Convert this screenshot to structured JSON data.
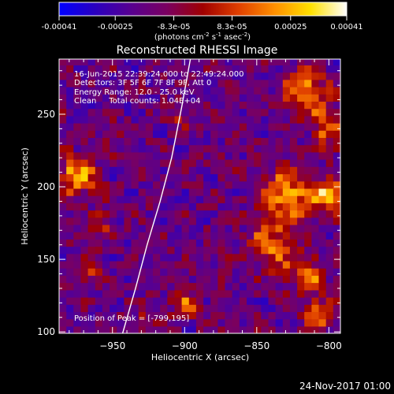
{
  "colors": {
    "background": "#000000",
    "text": "#ffffff",
    "limb_line": "#ffffff",
    "colormap": [
      "#0000ff",
      "#2a00c0",
      "#580090",
      "#7a0060",
      "#a00000",
      "#e04000",
      "#ff9000",
      "#ffe000",
      "#ffffff"
    ]
  },
  "colorbar": {
    "ticks": [
      {
        "value": -0.00041,
        "label": "-0.00041"
      },
      {
        "value": -0.00025,
        "label": "-0.00025"
      },
      {
        "value": -8.3e-05,
        "label": "-8.3e-05"
      },
      {
        "value": 8.3e-05,
        "label": "8.3e-05"
      },
      {
        "value": 0.00025,
        "label": "0.00025"
      },
      {
        "value": 0.00041,
        "label": "0.00041"
      }
    ],
    "range": [
      -0.00041,
      0.00041
    ],
    "unit_label": "(photons cm",
    "unit_sup1": "-2",
    "unit_mid": " s",
    "unit_sup2": "-1",
    "unit_end": " asec",
    "unit_sup3": "-2",
    "unit_close": ")"
  },
  "chart_data": {
    "type": "heatmap",
    "title": "Reconstructed RHESSI Image",
    "xlabel": "Heliocentric X (arcsec)",
    "ylabel": "Heliocentric Y (arcsec)",
    "xlim": [
      -987,
      -792
    ],
    "ylim": [
      99,
      288
    ],
    "x_ticks": [
      -950,
      -900,
      -850,
      -800
    ],
    "y_ticks": [
      100,
      150,
      200,
      250
    ],
    "grid": false,
    "annotations": [
      "16-Jun-2015 22:39:24.000 to 22:49:24.000",
      "Detectors: 3F 5F 6F 7F 8F 9F, Att 0",
      "Energy Range: 12.0 - 25.0 keV",
      "Clean     Total counts: 1.04E+04"
    ],
    "peak_label": "Position of Peak = [-799,195]",
    "peak_position": [
      -799,
      195
    ],
    "limb_curve": {
      "x": [
        -943,
        -934,
        -926,
        -917,
        -909,
        -902,
        -896
      ],
      "y": [
        99,
        130,
        160,
        190,
        220,
        255,
        288
      ]
    },
    "hotspots": [
      {
        "x": -975,
        "y": 208,
        "amp": 0.00036,
        "sigma": 9
      },
      {
        "x": -968,
        "y": 145,
        "amp": 0.00018,
        "sigma": 7
      },
      {
        "x": -958,
        "y": 176,
        "amp": 0.00016,
        "sigma": 6
      },
      {
        "x": -815,
        "y": 265,
        "amp": 0.00033,
        "sigma": 11
      },
      {
        "x": -797,
        "y": 240,
        "amp": 0.00032,
        "sigma": 9
      },
      {
        "x": -828,
        "y": 195,
        "amp": 0.00041,
        "sigma": 12
      },
      {
        "x": -799,
        "y": 195,
        "amp": 0.00041,
        "sigma": 8
      },
      {
        "x": -838,
        "y": 160,
        "amp": 0.0003,
        "sigma": 11
      },
      {
        "x": -815,
        "y": 140,
        "amp": 0.00029,
        "sigma": 9
      },
      {
        "x": -808,
        "y": 112,
        "amp": 0.00024,
        "sigma": 8
      },
      {
        "x": -900,
        "y": 120,
        "amp": 0.00024,
        "sigma": 7
      },
      {
        "x": -925,
        "y": 108,
        "amp": 0.00014,
        "sigma": 6
      },
      {
        "x": -903,
        "y": 250,
        "amp": 0.00012,
        "sigma": 6
      },
      {
        "x": -872,
        "y": 150,
        "amp": 0.00012,
        "sigma": 6
      },
      {
        "x": -950,
        "y": 240,
        "amp": 9e-05,
        "sigma": 5
      }
    ]
  },
  "footer": {
    "timestamp": "24-Nov-2017 01:00"
  }
}
